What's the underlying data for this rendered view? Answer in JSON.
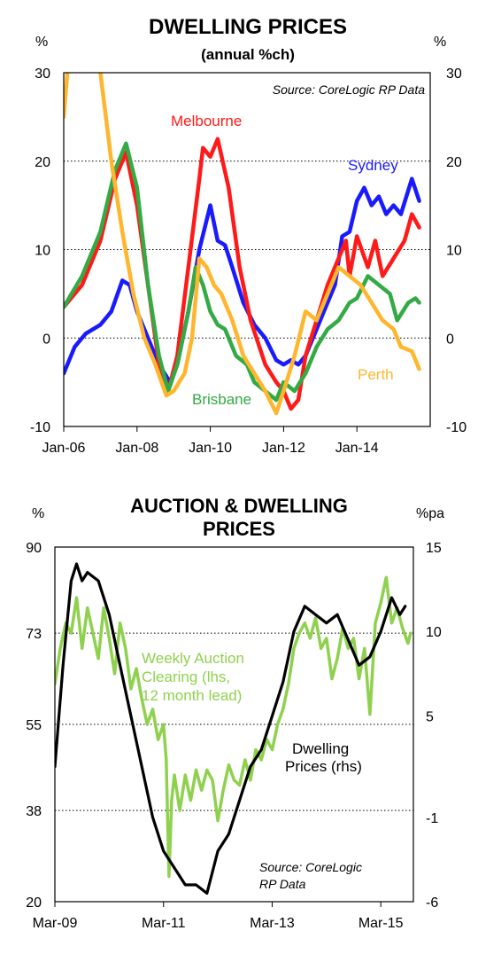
{
  "chart_data": [
    {
      "type": "line",
      "title": "DWELLING PRICES",
      "subtitle": "(annual %ch)",
      "y_unit_left": "%",
      "y_unit_right": "%",
      "source": "Source: CoreLogic RP Data",
      "x_ticks": [
        "Jan-06",
        "Jan-08",
        "Jan-10",
        "Jan-12",
        "Jan-14"
      ],
      "x_range": [
        2006.0,
        2016.0
      ],
      "y_ticks": [
        "-10",
        "0",
        "10",
        "20",
        "30"
      ],
      "ylim": [
        -10,
        30
      ],
      "grid": "dotted horizontal",
      "colors": {
        "Sydney": "#1a1aff",
        "Melbourne": "#ff1a1a",
        "Brisbane": "#33aa44",
        "Perth": "#ffb62e"
      },
      "series": [
        {
          "name": "Sydney",
          "label_text": "Sydney",
          "points": [
            [
              2006.0,
              -4
            ],
            [
              2006.3,
              -1
            ],
            [
              2006.6,
              0.5
            ],
            [
              2007.0,
              1.5
            ],
            [
              2007.3,
              3
            ],
            [
              2007.6,
              6.5
            ],
            [
              2007.8,
              6
            ],
            [
              2008.0,
              3
            ],
            [
              2008.3,
              0
            ],
            [
              2008.6,
              -3
            ],
            [
              2008.9,
              -5
            ],
            [
              2009.1,
              -3
            ],
            [
              2009.4,
              3
            ],
            [
              2009.7,
              10
            ],
            [
              2010.0,
              15
            ],
            [
              2010.2,
              11
            ],
            [
              2010.4,
              10.5
            ],
            [
              2010.6,
              8
            ],
            [
              2010.9,
              4
            ],
            [
              2011.2,
              1.5
            ],
            [
              2011.5,
              0
            ],
            [
              2011.8,
              -2.5
            ],
            [
              2012.0,
              -3
            ],
            [
              2012.2,
              -2.5
            ],
            [
              2012.4,
              -3
            ],
            [
              2012.6,
              -2
            ],
            [
              2012.9,
              1
            ],
            [
              2013.1,
              3
            ],
            [
              2013.4,
              6
            ],
            [
              2013.6,
              11.5
            ],
            [
              2013.8,
              12
            ],
            [
              2014.0,
              15.5
            ],
            [
              2014.2,
              17
            ],
            [
              2014.4,
              15
            ],
            [
              2014.6,
              16
            ],
            [
              2014.8,
              14
            ],
            [
              2015.0,
              15
            ],
            [
              2015.2,
              14
            ],
            [
              2015.5,
              18
            ],
            [
              2015.7,
              15.5
            ]
          ]
        },
        {
          "name": "Melbourne",
          "label_text": "Melbourne",
          "points": [
            [
              2006.0,
              3.5
            ],
            [
              2006.5,
              6
            ],
            [
              2007.0,
              11
            ],
            [
              2007.4,
              18
            ],
            [
              2007.7,
              21
            ],
            [
              2008.0,
              15
            ],
            [
              2008.3,
              6
            ],
            [
              2008.6,
              -3
            ],
            [
              2008.85,
              -6
            ],
            [
              2009.1,
              -2
            ],
            [
              2009.4,
              8
            ],
            [
              2009.7,
              18
            ],
            [
              2009.8,
              21.5
            ],
            [
              2010.0,
              20.5
            ],
            [
              2010.2,
              22.5
            ],
            [
              2010.5,
              17
            ],
            [
              2010.8,
              8
            ],
            [
              2011.1,
              2
            ],
            [
              2011.5,
              -3
            ],
            [
              2011.8,
              -5
            ],
            [
              2012.0,
              -6
            ],
            [
              2012.2,
              -8
            ],
            [
              2012.4,
              -7
            ],
            [
              2012.6,
              -2
            ],
            [
              2012.9,
              2
            ],
            [
              2013.2,
              6
            ],
            [
              2013.5,
              9
            ],
            [
              2013.7,
              11
            ],
            [
              2013.8,
              7
            ],
            [
              2014.0,
              11.5
            ],
            [
              2014.3,
              8
            ],
            [
              2014.5,
              11
            ],
            [
              2014.7,
              7
            ],
            [
              2015.0,
              9
            ],
            [
              2015.3,
              11
            ],
            [
              2015.5,
              14
            ],
            [
              2015.7,
              12.5
            ]
          ]
        },
        {
          "name": "Brisbane",
          "label_text": "Brisbane",
          "points": [
            [
              2006.0,
              3.5
            ],
            [
              2006.5,
              7
            ],
            [
              2007.0,
              12
            ],
            [
              2007.4,
              19
            ],
            [
              2007.7,
              22
            ],
            [
              2008.0,
              17
            ],
            [
              2008.3,
              6
            ],
            [
              2008.6,
              -2
            ],
            [
              2008.85,
              -6
            ],
            [
              2009.1,
              -3
            ],
            [
              2009.4,
              3
            ],
            [
              2009.6,
              8
            ],
            [
              2009.8,
              6
            ],
            [
              2010.0,
              3
            ],
            [
              2010.2,
              1.5
            ],
            [
              2010.4,
              1
            ],
            [
              2010.7,
              -2
            ],
            [
              2011.0,
              -3
            ],
            [
              2011.2,
              -5
            ],
            [
              2011.5,
              -6
            ],
            [
              2011.8,
              -7
            ],
            [
              2012.0,
              -5
            ],
            [
              2012.3,
              -6
            ],
            [
              2012.6,
              -4
            ],
            [
              2012.9,
              -1
            ],
            [
              2013.2,
              1
            ],
            [
              2013.5,
              2
            ],
            [
              2013.8,
              4
            ],
            [
              2014.0,
              4.5
            ],
            [
              2014.3,
              7
            ],
            [
              2014.6,
              6
            ],
            [
              2014.9,
              5
            ],
            [
              2015.1,
              2
            ],
            [
              2015.4,
              4
            ],
            [
              2015.6,
              4.5
            ],
            [
              2015.7,
              4
            ]
          ]
        },
        {
          "name": "Perth",
          "label_text": "Perth",
          "points": [
            [
              2006.0,
              25
            ],
            [
              2006.1,
              30
            ],
            [
              2006.2,
              34
            ],
            [
              2006.5,
              36
            ],
            [
              2006.8,
              33
            ],
            [
              2007.0,
              30
            ],
            [
              2007.3,
              20
            ],
            [
              2007.6,
              12
            ],
            [
              2007.9,
              5
            ],
            [
              2008.2,
              0
            ],
            [
              2008.5,
              -3
            ],
            [
              2008.8,
              -6.5
            ],
            [
              2009.0,
              -6
            ],
            [
              2009.3,
              -4
            ],
            [
              2009.5,
              0
            ],
            [
              2009.7,
              9
            ],
            [
              2009.9,
              8
            ],
            [
              2010.1,
              6
            ],
            [
              2010.3,
              5
            ],
            [
              2010.6,
              2
            ],
            [
              2010.9,
              -2
            ],
            [
              2011.2,
              -4
            ],
            [
              2011.5,
              -6
            ],
            [
              2011.8,
              -8.5
            ],
            [
              2012.0,
              -6
            ],
            [
              2012.3,
              -2
            ],
            [
              2012.6,
              3
            ],
            [
              2012.9,
              2
            ],
            [
              2013.2,
              5
            ],
            [
              2013.5,
              8
            ],
            [
              2013.8,
              7
            ],
            [
              2014.1,
              6
            ],
            [
              2014.4,
              4
            ],
            [
              2014.7,
              2
            ],
            [
              2015.0,
              1
            ],
            [
              2015.2,
              -1
            ],
            [
              2015.5,
              -1.5
            ],
            [
              2015.7,
              -3.5
            ]
          ]
        }
      ]
    },
    {
      "type": "line",
      "title_line1": "AUCTION & DWELLING",
      "title_line2": "PRICES",
      "y_unit_left": "%",
      "y_unit_right": "%pa",
      "source_line1": "Source:  CoreLogic",
      "source_line2": "RP Data",
      "x_ticks": [
        "Mar-09",
        "Mar-11",
        "Mar-13",
        "Mar-15"
      ],
      "x_range": [
        2009.0,
        2015.6
      ],
      "y_ticks_left": [
        "20",
        "38",
        "55",
        "73",
        "90"
      ],
      "y_ticks_right": [
        "-6",
        "-1",
        "5",
        "10",
        "15"
      ],
      "ylim_left": [
        20,
        90
      ],
      "ylim_right": [
        -6,
        15
      ],
      "grid": "dotted horizontal",
      "colors": {
        "auction": "#8fd14f",
        "dwelling": "#000000"
      },
      "series": [
        {
          "name": "Weekly Auction Clearing (lhs, 12 month lead)",
          "label_lines": [
            "Weekly Auction",
            "Clearing (lhs,",
            "12 month lead)"
          ],
          "axis": "left",
          "points": [
            [
              2009.0,
              63
            ],
            [
              2009.1,
              70
            ],
            [
              2009.2,
              75
            ],
            [
              2009.3,
              73
            ],
            [
              2009.4,
              80
            ],
            [
              2009.5,
              70
            ],
            [
              2009.6,
              78
            ],
            [
              2009.7,
              73
            ],
            [
              2009.8,
              68
            ],
            [
              2009.9,
              78
            ],
            [
              2010.0,
              72
            ],
            [
              2010.1,
              65
            ],
            [
              2010.2,
              75
            ],
            [
              2010.3,
              70
            ],
            [
              2010.4,
              62
            ],
            [
              2010.5,
              66
            ],
            [
              2010.6,
              60
            ],
            [
              2010.7,
              55
            ],
            [
              2010.8,
              58
            ],
            [
              2010.9,
              52
            ],
            [
              2011.0,
              55
            ],
            [
              2011.05,
              48
            ],
            [
              2011.1,
              25
            ],
            [
              2011.15,
              40
            ],
            [
              2011.2,
              45
            ],
            [
              2011.3,
              38
            ],
            [
              2011.4,
              45
            ],
            [
              2011.5,
              40
            ],
            [
              2011.6,
              46
            ],
            [
              2011.7,
              42
            ],
            [
              2011.8,
              46
            ],
            [
              2011.9,
              44
            ],
            [
              2012.0,
              36
            ],
            [
              2012.1,
              42
            ],
            [
              2012.2,
              47
            ],
            [
              2012.3,
              44
            ],
            [
              2012.4,
              43
            ],
            [
              2012.5,
              48
            ],
            [
              2012.6,
              44
            ],
            [
              2012.7,
              50
            ],
            [
              2012.8,
              48
            ],
            [
              2012.9,
              52
            ],
            [
              2013.0,
              50
            ],
            [
              2013.1,
              55
            ],
            [
              2013.2,
              58
            ],
            [
              2013.3,
              63
            ],
            [
              2013.4,
              70
            ],
            [
              2013.5,
              73
            ],
            [
              2013.6,
              75
            ],
            [
              2013.7,
              72
            ],
            [
              2013.8,
              76
            ],
            [
              2013.9,
              70
            ],
            [
              2014.0,
              72
            ],
            [
              2014.1,
              64
            ],
            [
              2014.2,
              68
            ],
            [
              2014.3,
              74
            ],
            [
              2014.4,
              70
            ],
            [
              2014.5,
              72
            ],
            [
              2014.6,
              64
            ],
            [
              2014.7,
              70
            ],
            [
              2014.8,
              57
            ],
            [
              2014.9,
              75
            ],
            [
              2015.0,
              79
            ],
            [
              2015.1,
              84
            ],
            [
              2015.2,
              75
            ],
            [
              2015.3,
              78
            ],
            [
              2015.4,
              74
            ],
            [
              2015.5,
              71
            ],
            [
              2015.55,
              73
            ]
          ]
        },
        {
          "name": "Dwelling Prices (rhs)",
          "label_lines": [
            "Dwelling",
            "Prices (rhs)"
          ],
          "axis": "right",
          "points": [
            [
              2009.0,
              2
            ],
            [
              2009.15,
              8
            ],
            [
              2009.3,
              13
            ],
            [
              2009.4,
              14
            ],
            [
              2009.5,
              13
            ],
            [
              2009.6,
              13.5
            ],
            [
              2009.8,
              13
            ],
            [
              2010.0,
              11
            ],
            [
              2010.2,
              8
            ],
            [
              2010.4,
              5
            ],
            [
              2010.6,
              2
            ],
            [
              2010.8,
              -1
            ],
            [
              2011.0,
              -3
            ],
            [
              2011.2,
              -4
            ],
            [
              2011.4,
              -5
            ],
            [
              2011.6,
              -5
            ],
            [
              2011.8,
              -5.5
            ],
            [
              2012.0,
              -3
            ],
            [
              2012.2,
              -2
            ],
            [
              2012.4,
              0
            ],
            [
              2012.6,
              2
            ],
            [
              2012.8,
              3
            ],
            [
              2013.0,
              5
            ],
            [
              2013.2,
              7
            ],
            [
              2013.4,
              10
            ],
            [
              2013.6,
              11.5
            ],
            [
              2013.8,
              11
            ],
            [
              2014.0,
              10.5
            ],
            [
              2014.2,
              11
            ],
            [
              2014.4,
              9.5
            ],
            [
              2014.6,
              8
            ],
            [
              2014.8,
              8.5
            ],
            [
              2015.0,
              10
            ],
            [
              2015.2,
              12
            ],
            [
              2015.35,
              11
            ],
            [
              2015.45,
              11.5
            ]
          ]
        }
      ]
    }
  ]
}
